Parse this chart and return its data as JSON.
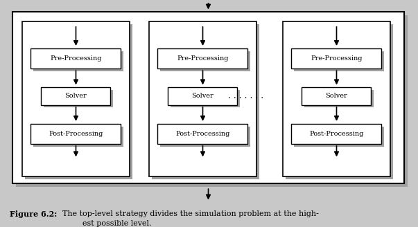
{
  "background_color": "#c8c8c8",
  "outer_box_color": "#ffffff",
  "inner_box_color": "#ffffff",
  "shadow_color": "#a0a0a0",
  "box_edge_color": "#000000",
  "fig_width": 6.03,
  "fig_height": 3.28,
  "caption_bold": "Figure 6.2:",
  "caption_normal": "  The top-level strategy divides the simulation problem at the high-\n                          est possible level.",
  "dots_text": "- - - - - - -",
  "panels": [
    {
      "label_pre": "Pre-Processing",
      "label_solver": "Solver",
      "label_post": "Post-Processing"
    },
    {
      "label_pre": "Pre-Processing",
      "label_solver": "Solver",
      "label_post": "Post-Processing"
    },
    {
      "label_pre": "Pre-Processing",
      "label_solver": "Solver",
      "label_post": "Post-Processing"
    }
  ]
}
